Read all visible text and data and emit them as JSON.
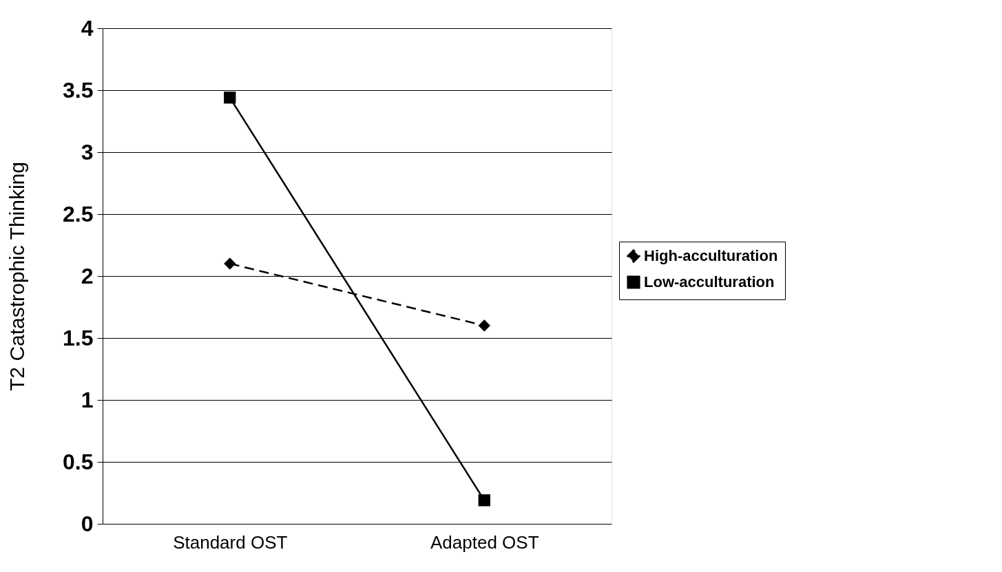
{
  "chart_data": {
    "type": "line",
    "ylabel": "T2 Catastrophic Thinking",
    "categories": [
      "Standard OST",
      "Adapted OST"
    ],
    "series": [
      {
        "name": "High-acculturation",
        "color": "#000000",
        "values": [
          2.1,
          1.6
        ],
        "marker": "diamond",
        "line_style": "dashed"
      },
      {
        "name": "Low-acculturation",
        "color": "#000000",
        "values": [
          3.44,
          0.19
        ],
        "marker": "square",
        "line_style": "solid"
      }
    ],
    "ylim": [
      0,
      4
    ],
    "yticks": [
      0,
      0.5,
      1,
      1.5,
      2,
      2.5,
      3,
      3.5,
      4
    ],
    "grid": "y",
    "legend": "right"
  }
}
